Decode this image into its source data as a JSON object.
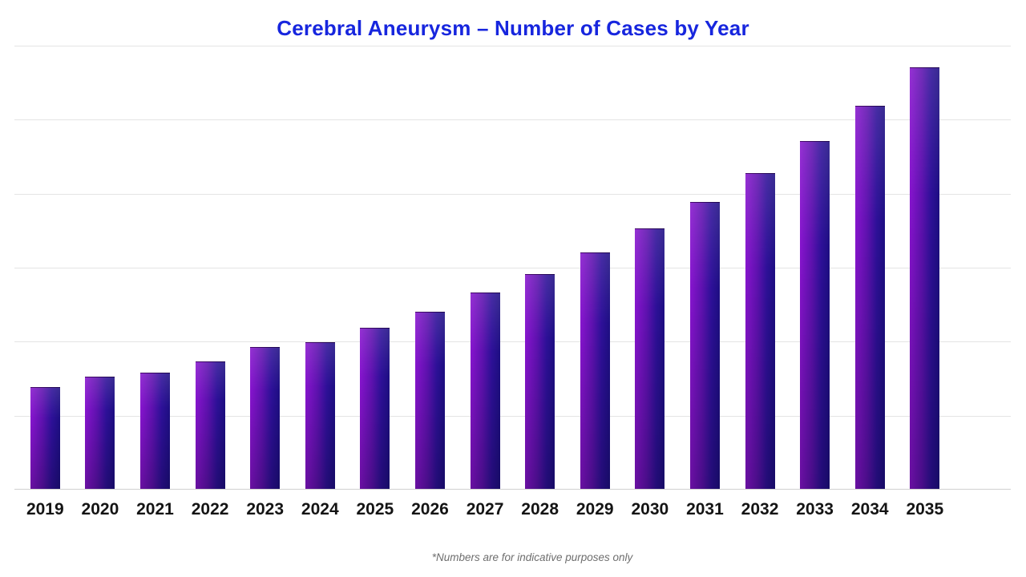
{
  "page": {
    "background": "#ffffff"
  },
  "header": {
    "title": "Cerebral Aneurysm – Number of Cases by Year",
    "title_color": "#1726de"
  },
  "footnote": {
    "text": "*Numbers are for indicative purposes only",
    "color": "#6e6e6e"
  },
  "chart_data": {
    "type": "bar",
    "title": "Cerebral Aneurysm – Number of Cases by Year",
    "categories": [
      "2019",
      "2020",
      "2021",
      "2022",
      "2023",
      "2024",
      "2025",
      "2026",
      "2027",
      "2028",
      "2029",
      "2030",
      "2031",
      "2032",
      "2033",
      "2034",
      "2035"
    ],
    "values": [
      24.1,
      26.6,
      27.6,
      30.2,
      33.7,
      34.8,
      38.2,
      42.0,
      46.6,
      51.0,
      56.1,
      61.8,
      68.1,
      74.9,
      82.5,
      90.9,
      100
    ],
    "value_scale_note": "No y-axis tick labels are shown in the chart; values are bar heights as a percentage of the tallest (2035) bar",
    "xlabel": "",
    "ylabel": "",
    "ylim": [
      0,
      105.3
    ],
    "grid": "horizontal",
    "gridline_count": 7,
    "legend": false,
    "bar_gradient_stops": [
      "#8714ce",
      "#5e11af",
      "#2d1098",
      "#1d0e82"
    ],
    "gridline_color": "#e4e4e4",
    "axis_line_color": "#d0d0d0",
    "x_tick_color": "#141414"
  }
}
